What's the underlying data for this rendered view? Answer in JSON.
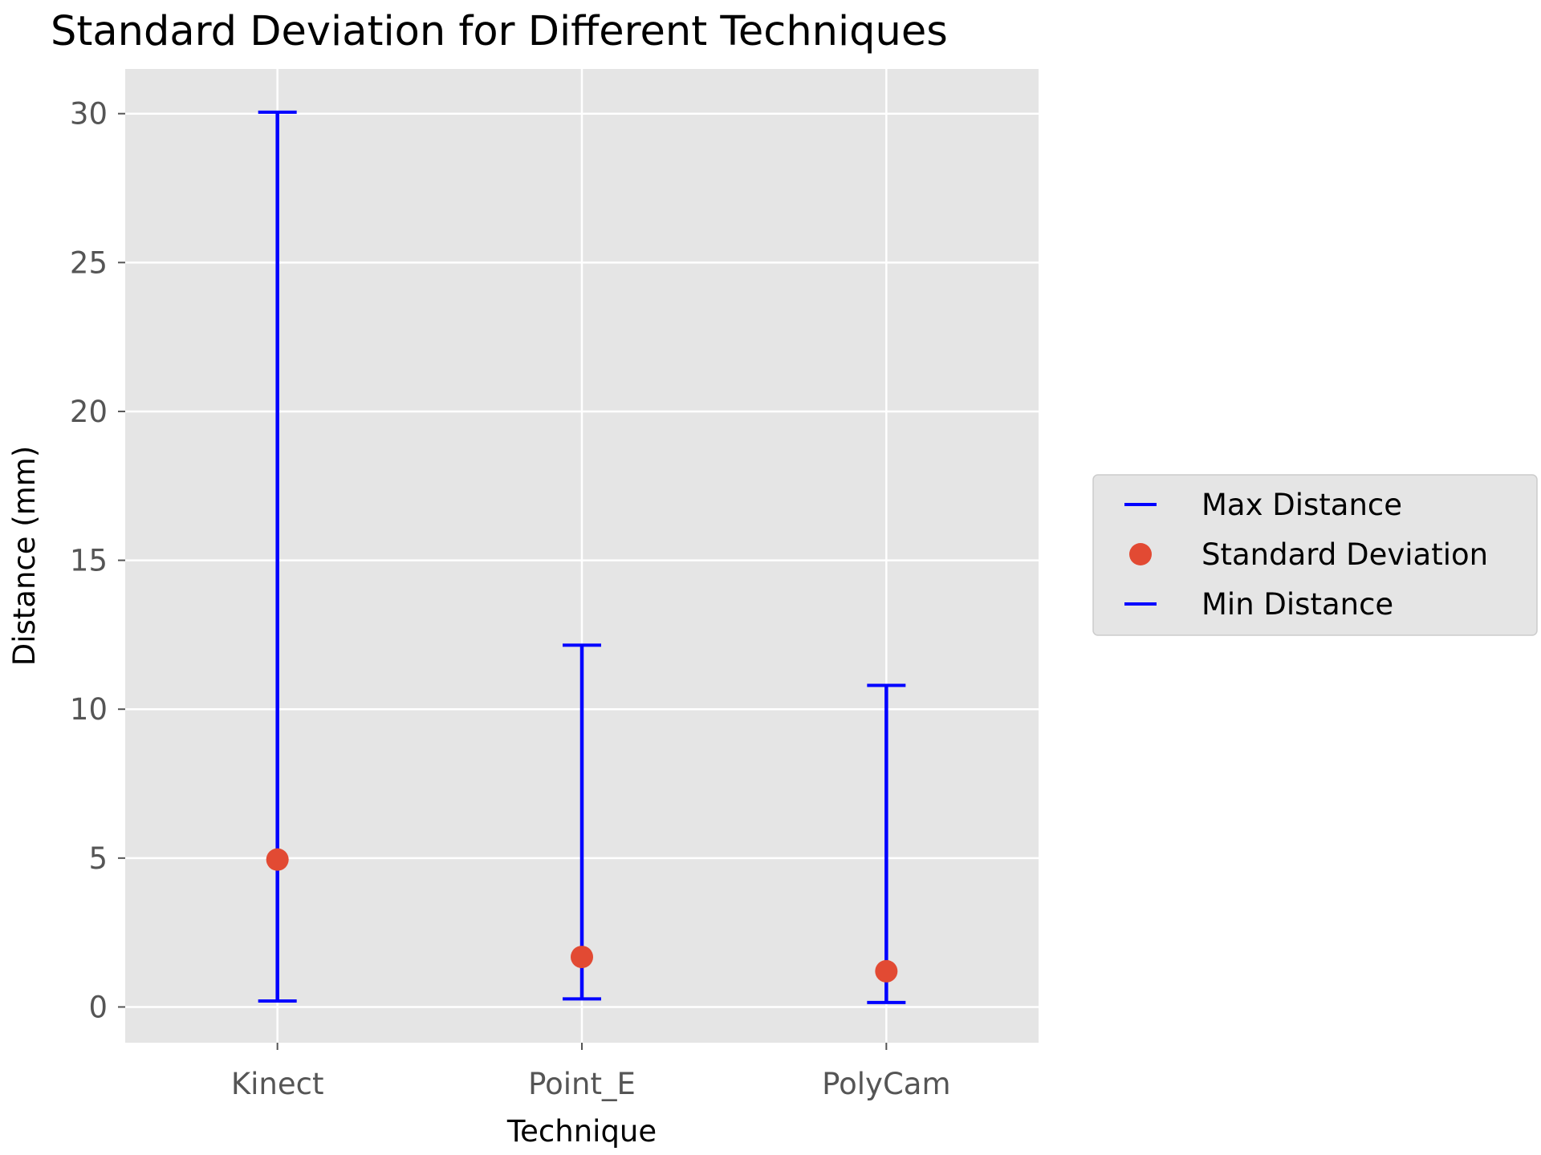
{
  "chart_data": {
    "type": "errorbar",
    "title": "Standard Deviation for Different Techniques",
    "xlabel": "Technique",
    "ylabel": "Distance (mm)",
    "categories": [
      "Kinect",
      "Point_E",
      "PolyCam"
    ],
    "series": [
      {
        "name": "Max Distance",
        "values": [
          30.05,
          12.15,
          10.8
        ],
        "color": "#0000ff",
        "marker": "hline"
      },
      {
        "name": "Standard Deviation",
        "values": [
          4.95,
          1.68,
          1.2
        ],
        "color": "#e24a33",
        "marker": "circle"
      },
      {
        "name": "Min Distance",
        "values": [
          0.2,
          0.27,
          0.15
        ],
        "color": "#0000ff",
        "marker": "hline"
      }
    ],
    "ylim": [
      -1.2,
      31.5
    ],
    "yticks": [
      0,
      5,
      10,
      15,
      20,
      25,
      30
    ],
    "grid": true,
    "legend_position": "right"
  }
}
